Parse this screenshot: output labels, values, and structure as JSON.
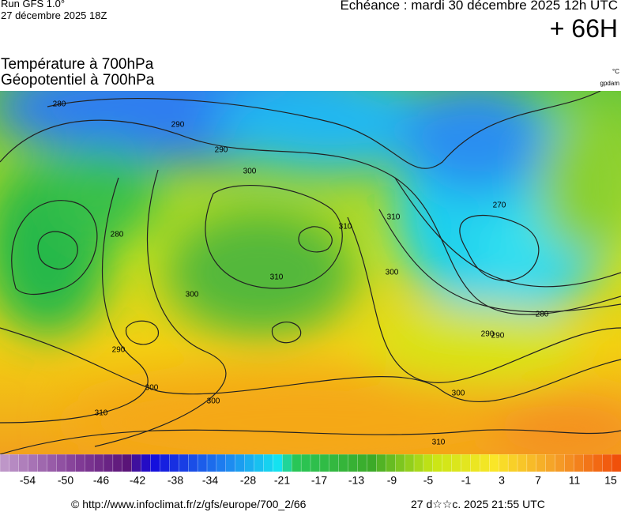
{
  "header": {
    "run": "Run GFS 1.0°",
    "date": "27 décembre 2025 18Z",
    "echeance": "Échéance : mardi 30 décembre 2025 12h UTC",
    "lead": "+ 66H",
    "title_temperature": "Température à 700hPa",
    "title_geopotential": "Géopotentiel à 700hPa",
    "unit_temperature": "°C",
    "unit_geopotential": "gpdam"
  },
  "colorbar": {
    "labels": [
      "-54",
      "-50",
      "-46",
      "-42",
      "-38",
      "-34",
      "-28",
      "-21",
      "-17",
      "-13",
      "-9",
      "-5",
      "-1",
      "3",
      "7",
      "11",
      "15"
    ]
  },
  "contours": {
    "labels": [
      "280",
      "290",
      "290",
      "300",
      "280",
      "290",
      "300",
      "290",
      "300",
      "310",
      "310",
      "310",
      "300",
      "310",
      "300",
      "270",
      "280",
      "290",
      "300",
      "310"
    ]
  },
  "footer": {
    "source": "© http://www.infoclimat.fr/z/gfs/europe/700_2/66",
    "generated": "27 d☆☆c. 2025 21:55 UTC"
  }
}
